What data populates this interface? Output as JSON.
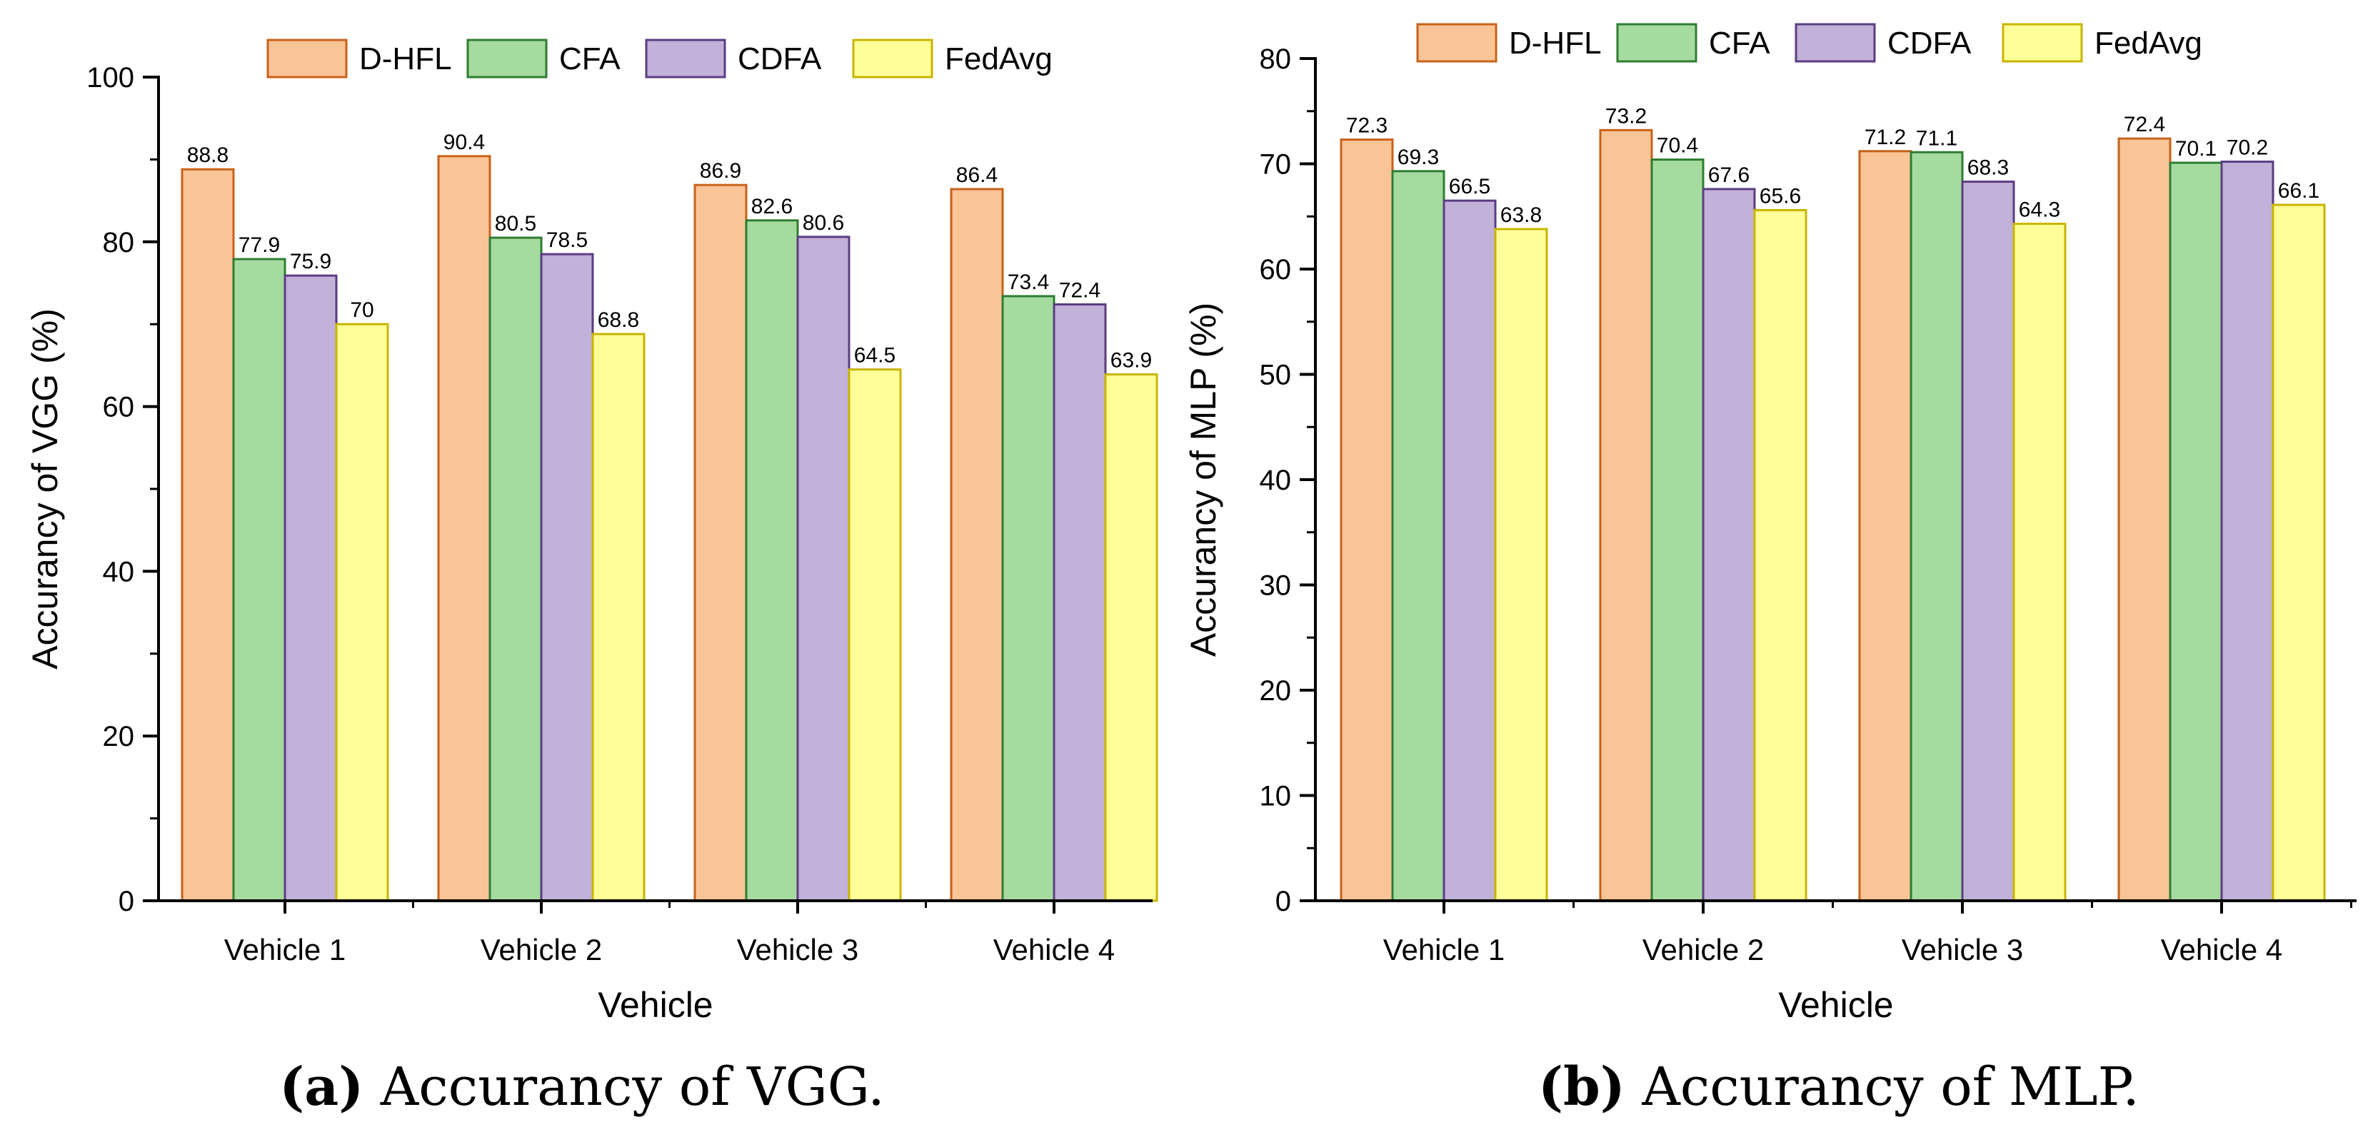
{
  "chart_data": [
    {
      "type": "bar",
      "categories": [
        "Vehicle 1",
        "Vehicle 2",
        "Vehicle 3",
        "Vehicle 4"
      ],
      "series": [
        {
          "name": "D-HFL",
          "values": [
            88.8,
            90.4,
            86.9,
            86.4
          ],
          "labels": [
            "88.8",
            "90.4",
            "86.9",
            "86.4"
          ]
        },
        {
          "name": "CFA",
          "values": [
            77.9,
            80.5,
            82.6,
            73.4
          ],
          "labels": [
            "77.9",
            "80.5",
            "82.6",
            "73.4"
          ]
        },
        {
          "name": "CDFA",
          "values": [
            75.9,
            78.5,
            80.6,
            72.4
          ],
          "labels": [
            "75.9",
            "78.5",
            "80.6",
            "72.4"
          ]
        },
        {
          "name": "FedAvg",
          "values": [
            70,
            68.8,
            64.5,
            63.9
          ],
          "labels": [
            "70",
            "68.8",
            "64.5",
            "63.9"
          ]
        }
      ],
      "xlabel": "Vehicle",
      "ylabel": "Accurancy of VGG (%)",
      "ylim": [
        0,
        100
      ],
      "yticks": [
        "0",
        "20",
        "40",
        "60",
        "80",
        "100"
      ],
      "legend": "top",
      "caption_letter": "(a)",
      "caption_text": "Accurancy of VGG."
    },
    {
      "type": "bar",
      "categories": [
        "Vehicle 1",
        "Vehicle 2",
        "Vehicle 3",
        "Vehicle 4"
      ],
      "series": [
        {
          "name": "D-HFL",
          "values": [
            72.3,
            73.2,
            71.2,
            72.4
          ],
          "labels": [
            "72.3",
            "73.2",
            "71.2",
            "72.4"
          ]
        },
        {
          "name": "CFA",
          "values": [
            69.3,
            70.4,
            71.1,
            70.1
          ],
          "labels": [
            "69.3",
            "70.4",
            "71.1",
            "70.1"
          ]
        },
        {
          "name": "CDFA",
          "values": [
            66.5,
            67.6,
            68.3,
            70.2
          ],
          "labels": [
            "66.5",
            "67.6",
            "68.3",
            "70.2"
          ]
        },
        {
          "name": "FedAvg",
          "values": [
            63.8,
            65.6,
            64.3,
            66.1
          ],
          "labels": [
            "63.8",
            "65.6",
            "64.3",
            "66.1"
          ]
        }
      ],
      "xlabel": "Vehicle",
      "ylabel": "Accurancy of MLP (%)",
      "ylim": [
        0,
        80
      ],
      "yticks": [
        "0",
        "10",
        "20",
        "30",
        "40",
        "50",
        "60",
        "70",
        "80"
      ],
      "legend": "top",
      "caption_letter": "(b)",
      "caption_text": "Accurancy of MLP."
    }
  ],
  "colors": {
    "series_fill": [
      "#f9c496",
      "#a6dba0",
      "#c2b1d8",
      "#ffff99"
    ],
    "series_stroke": [
      "#c8621a",
      "#2e7d32",
      "#5b3d82",
      "#c8b400"
    ]
  }
}
